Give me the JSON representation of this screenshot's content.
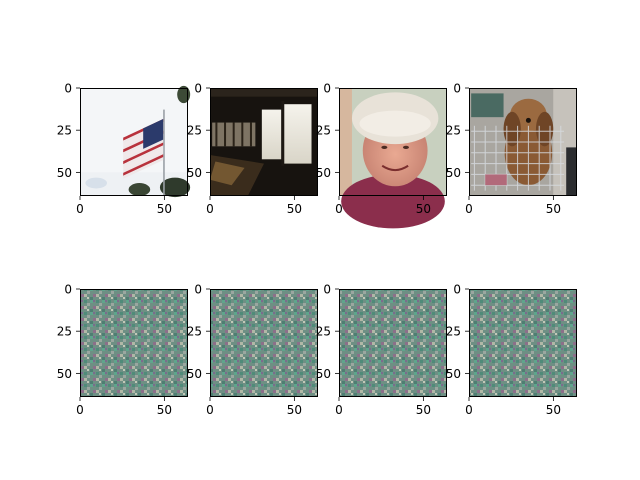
{
  "chart_data": [
    {
      "type": "image",
      "subject": "american-flag",
      "row": 0,
      "col": 0,
      "xlim": [
        0,
        64
      ],
      "ylim": [
        64,
        0
      ],
      "xticks": [
        0,
        50
      ],
      "yticks": [
        0,
        25,
        50
      ]
    },
    {
      "type": "image",
      "subject": "dark-room-interior",
      "row": 0,
      "col": 1,
      "xlim": [
        0,
        64
      ],
      "ylim": [
        64,
        0
      ],
      "xticks": [
        0,
        50
      ],
      "yticks": [
        0,
        25,
        50
      ]
    },
    {
      "type": "image",
      "subject": "person-in-hairnet",
      "row": 0,
      "col": 2,
      "xlim": [
        0,
        64
      ],
      "ylim": [
        64,
        0
      ],
      "xticks": [
        0,
        50
      ],
      "yticks": [
        0,
        25,
        50
      ]
    },
    {
      "type": "image",
      "subject": "dog-in-cart",
      "row": 0,
      "col": 3,
      "xlim": [
        0,
        64
      ],
      "ylim": [
        64,
        0
      ],
      "xticks": [
        0,
        50
      ],
      "yticks": [
        0,
        25,
        50
      ]
    },
    {
      "type": "image",
      "subject": "periodic-noise-pattern",
      "row": 1,
      "col": 0,
      "xlim": [
        0,
        64
      ],
      "ylim": [
        64,
        0
      ],
      "xticks": [
        0,
        50
      ],
      "yticks": [
        0,
        25,
        50
      ]
    },
    {
      "type": "image",
      "subject": "periodic-noise-pattern",
      "row": 1,
      "col": 1,
      "xlim": [
        0,
        64
      ],
      "ylim": [
        64,
        0
      ],
      "xticks": [
        0,
        50
      ],
      "yticks": [
        0,
        25,
        50
      ]
    },
    {
      "type": "image",
      "subject": "periodic-noise-pattern",
      "row": 1,
      "col": 2,
      "xlim": [
        0,
        64
      ],
      "ylim": [
        64,
        0
      ],
      "xticks": [
        0,
        50
      ],
      "yticks": [
        0,
        25,
        50
      ]
    },
    {
      "type": "image",
      "subject": "periodic-noise-pattern",
      "row": 1,
      "col": 3,
      "xlim": [
        0,
        64
      ],
      "ylim": [
        64,
        0
      ],
      "xticks": [
        0,
        50
      ],
      "yticks": [
        0,
        25,
        50
      ]
    }
  ],
  "colors": {
    "noise_base": "#6e8f84",
    "flag_red": "#b8323c",
    "flag_blue": "#2b3a6b"
  }
}
